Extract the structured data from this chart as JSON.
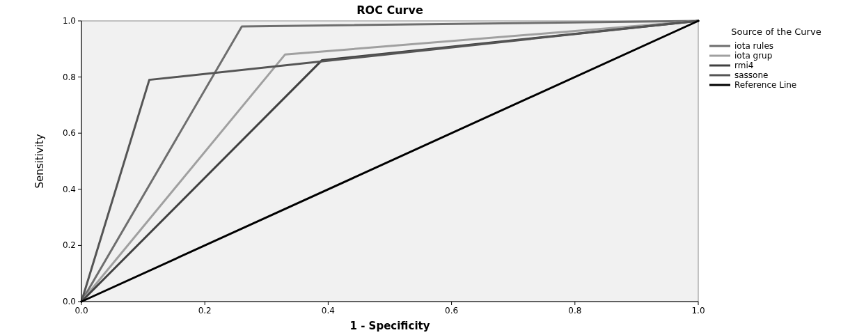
{
  "chart_data": {
    "type": "line",
    "title": "ROC Curve",
    "xlabel": "1 - Specificity",
    "ylabel": "Sensitivity",
    "legend_title": "Source of the Curve",
    "legend": "right",
    "grid": false,
    "xlim": [
      0,
      1
    ],
    "ylim": [
      0,
      1
    ],
    "xticks": [
      {
        "value": 0,
        "label": "0.0"
      },
      {
        "value": 0.2,
        "label": "0.2"
      },
      {
        "value": 0.4,
        "label": "0.4"
      },
      {
        "value": 0.6,
        "label": "0.6"
      },
      {
        "value": 0.8,
        "label": "0.8"
      },
      {
        "value": 1,
        "label": "1.0"
      }
    ],
    "yticks": [
      {
        "value": 0,
        "label": "0.0"
      },
      {
        "value": 0.2,
        "label": "0.2"
      },
      {
        "value": 0.4,
        "label": "0.4"
      },
      {
        "value": 0.6,
        "label": "0.6"
      },
      {
        "value": 0.8,
        "label": "0.8"
      },
      {
        "value": 1,
        "label": "1.0"
      }
    ],
    "series": [
      {
        "name": "iota rules",
        "color": "#6e6e6e",
        "x": [
          0,
          0.26,
          1
        ],
        "values": [
          0,
          0.98,
          1
        ]
      },
      {
        "name": "iota grup",
        "color": "#a0a0a0",
        "x": [
          0,
          0.33,
          1
        ],
        "values": [
          0,
          0.88,
          1
        ]
      },
      {
        "name": "rmi4",
        "color": "#404040",
        "x": [
          0,
          0.39,
          1
        ],
        "values": [
          0,
          0.86,
          1
        ]
      },
      {
        "name": "sassone",
        "color": "#555555",
        "x": [
          0,
          0.11,
          1
        ],
        "values": [
          0,
          0.79,
          1
        ]
      },
      {
        "name": "Reference Line",
        "color": "#000000",
        "x": [
          0,
          1
        ],
        "values": [
          0,
          1
        ]
      }
    ]
  }
}
